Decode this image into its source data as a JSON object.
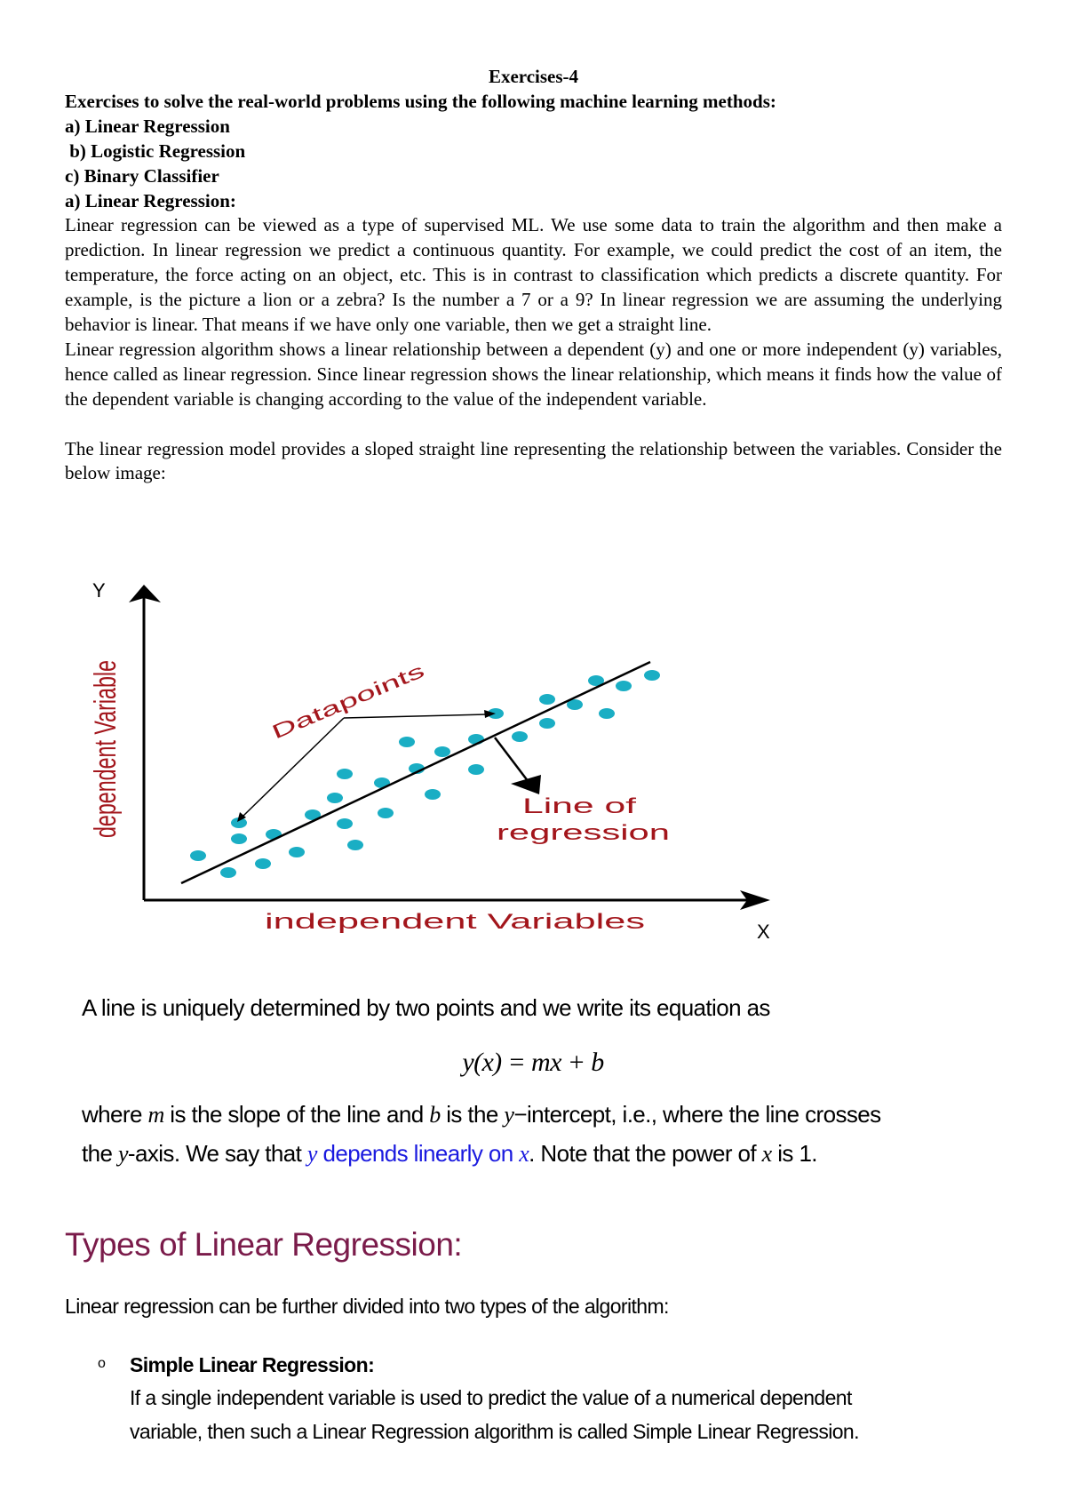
{
  "header": {
    "title": "Exercises-4",
    "subtitle": "Exercises to solve the real-world problems using the following machine learning methods:",
    "methods": [
      "a) Linear Regression",
      " b) Logistic Regression",
      "c) Binary Classifier"
    ],
    "section_heading": "a) Linear Regression:"
  },
  "paragraphs": [
    "Linear regression can be viewed as a type of supervised ML. We use some data to train the algorithm and then make a prediction. In linear regression we predict a continuous quantity. For example, we could predict the cost of an item, the temperature, the force acting on an object, etc. This is in contrast to classification which predicts a discrete quantity. For example, is the picture a lion or a zebra? Is the number a 7 or a 9? In linear regression we are assuming the underlying behavior is linear. That means if we have only one variable, then we get a straight line.",
    "Linear regression algorithm shows a linear relationship between a dependent (y) and one or more independent (y) variables, hence called as linear regression. Since linear regression shows the linear relationship, which means it finds how the value of the dependent variable is changing according to the value of the independent variable.",
    "The linear regression model provides a sloped straight line representing the relationship between the variables. Consider the below image:"
  ],
  "diagram": {
    "y_axis_letter": "Y",
    "x_axis_letter": "X",
    "y_label": "dependent Variable",
    "x_label": "independent Variables",
    "datapoints_label": "Datapoints",
    "line_label_1": "Line of",
    "line_label_2": "regression",
    "dot_color": "#1aaec4",
    "label_color": "#a3161c"
  },
  "equation_block": {
    "intro": "A line is uniquely determined by two points and we write its equation as",
    "equation": "y(x) = mx + b",
    "where_1": "where",
    "m": "m",
    "where_2": "is the slope of the line and",
    "b": "b",
    "where_3": "is the",
    "y": "y",
    "where_4": "−intercept, i.e., where the line crosses",
    "the": "the",
    "y2": "y",
    "axis_text": "-axis. We say that",
    "y3": "y",
    "blue_text": "depends linearly on",
    "x": "x",
    "note": ". Note that the power of",
    "x2": "x",
    "is1": "is 1."
  },
  "types": {
    "heading": "Types of Linear Regression:",
    "intro": "Linear regression can be further divided into two types of the algorithm:",
    "bullet_glyph": "o",
    "item_title": "Simple Linear Regression:",
    "item_text_1": "If a single independent variable is used to predict the value of a numerical dependent",
    "item_text_2": "variable, then such a Linear Regression algorithm is called Simple Linear Regression."
  }
}
